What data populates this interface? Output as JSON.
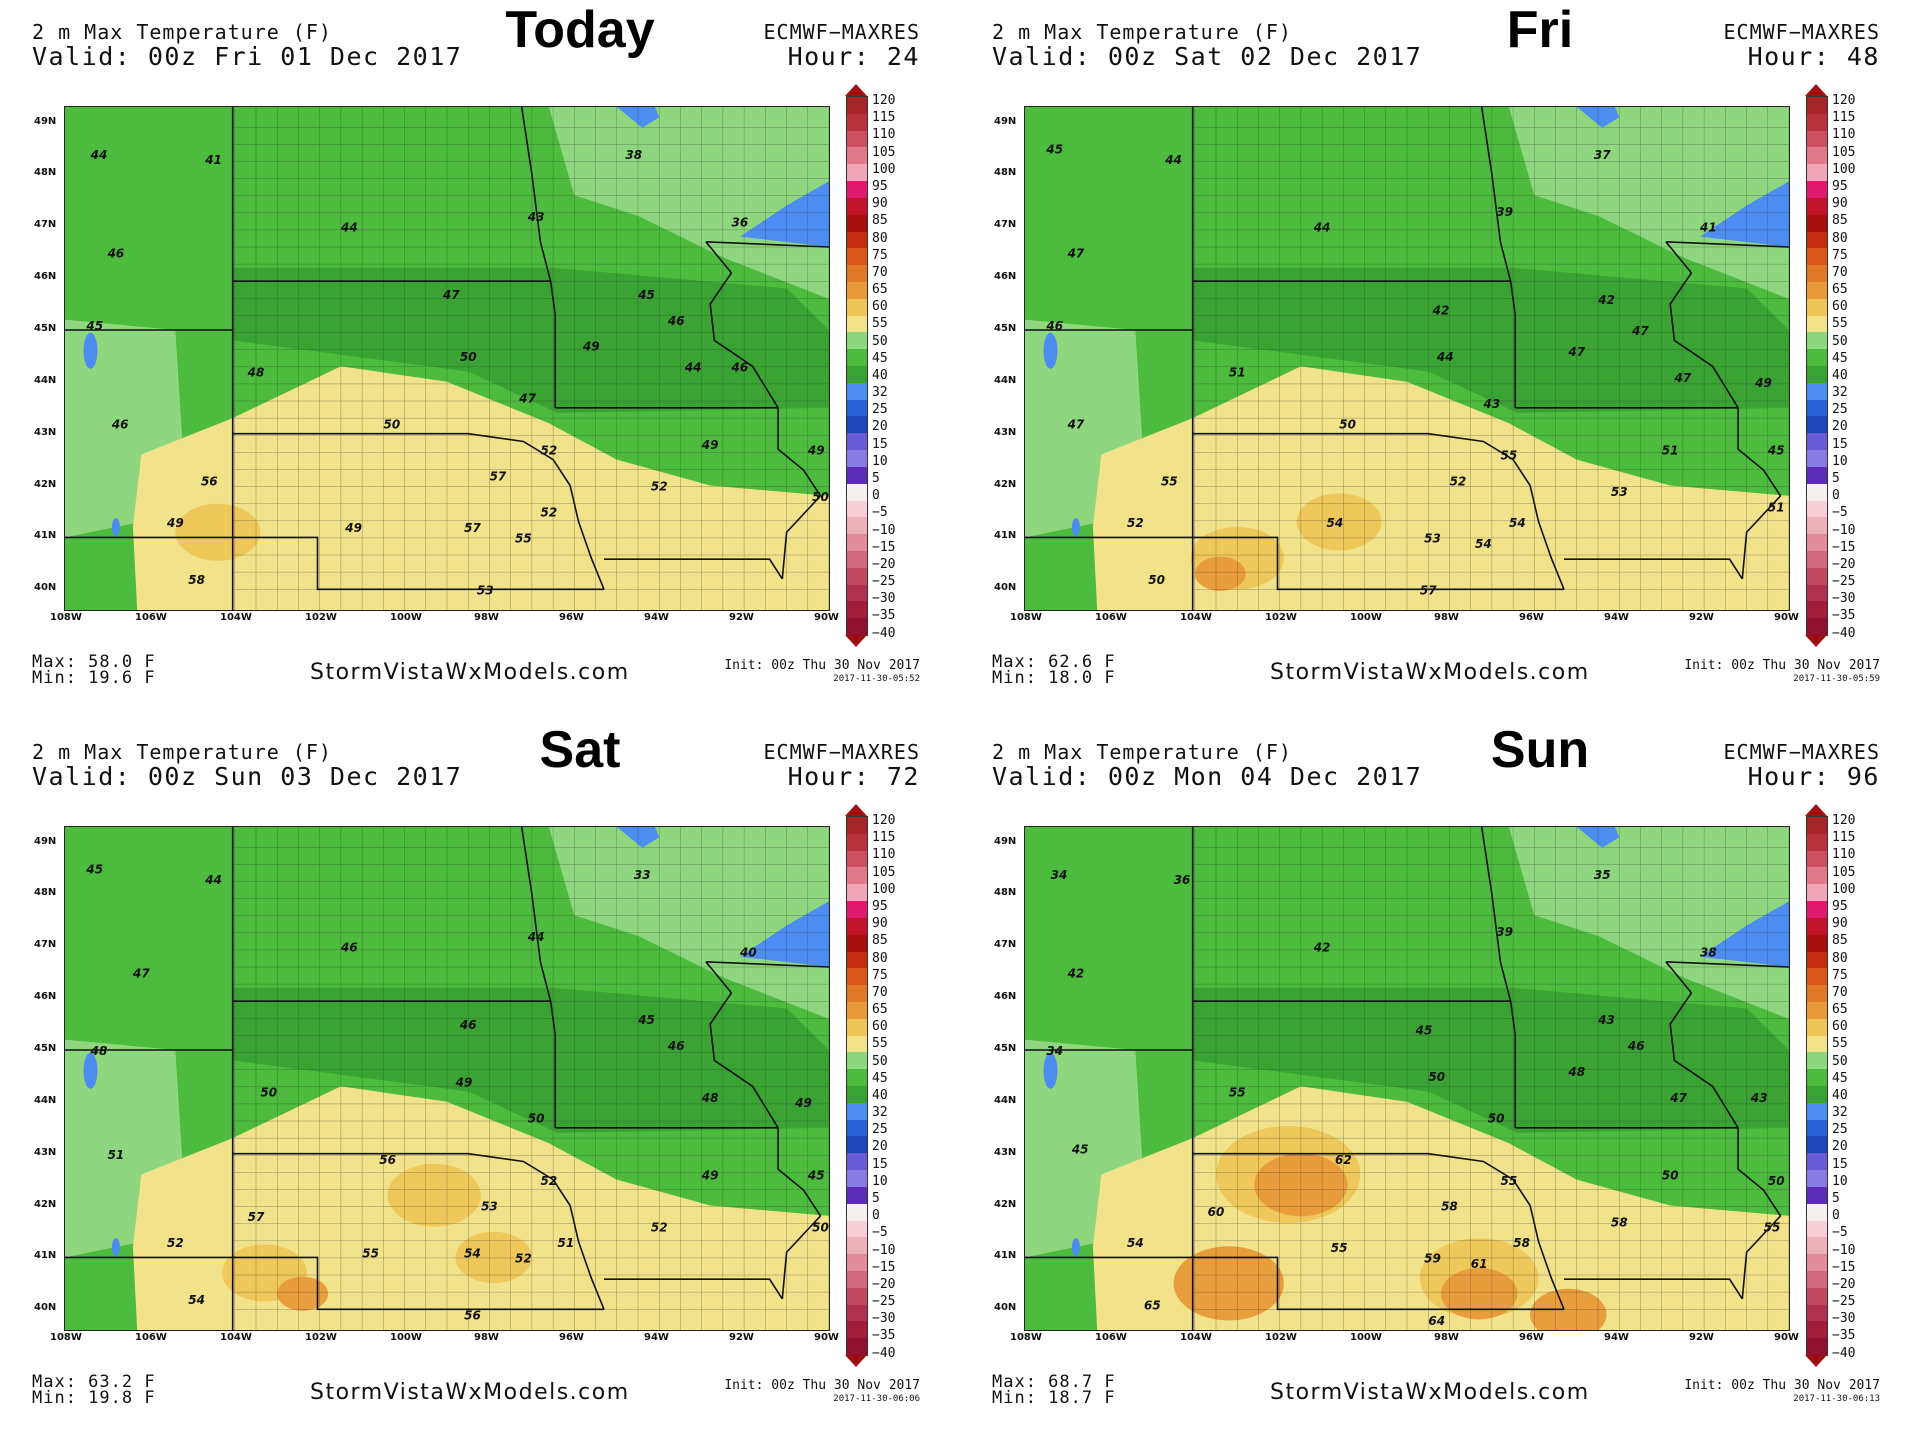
{
  "colors": {
    "dark_green": "#3aa334",
    "mid_green": "#4cbb3e",
    "light_green": "#8fd77e",
    "tan": "#f2e28a",
    "gold": "#eec65a",
    "orange": "#e89a3a",
    "lake_blue": "#4d8cf0",
    "county_line": "#333333"
  },
  "legend": {
    "labels": [
      "120",
      "115",
      "110",
      "105",
      "100",
      "95",
      "90",
      "85",
      "80",
      "75",
      "70",
      "65",
      "60",
      "55",
      "50",
      "45",
      "40",
      "32",
      "25",
      "20",
      "15",
      "10",
      "5",
      "0",
      "−5",
      "−10",
      "−15",
      "−20",
      "−25",
      "−30",
      "−35",
      "−40"
    ],
    "colors": [
      "#a52428",
      "#b8333c",
      "#cc5060",
      "#e07a8a",
      "#f0a6b8",
      "#e01a6e",
      "#c0142a",
      "#a81010",
      "#c42c10",
      "#d8561c",
      "#e07a28",
      "#e89a3a",
      "#eec65a",
      "#f2e28a",
      "#8fd77e",
      "#4cbb3e",
      "#3aa334",
      "#4d8cf0",
      "#2a63d6",
      "#1e46b8",
      "#6a5cd6",
      "#8a7ae4",
      "#5a2cb8",
      "#f4f0f0",
      "#f6d0d6",
      "#eeb0ba",
      "#e08c9c",
      "#d06a80",
      "#c04a64",
      "#b03050",
      "#a01e3c",
      "#901030"
    ]
  },
  "axes": {
    "lat_labels": [
      "49N",
      "48N",
      "47N",
      "46N",
      "45N",
      "44N",
      "43N",
      "42N",
      "41N",
      "40N"
    ],
    "lon_labels": [
      "108W",
      "106W",
      "104W",
      "102W",
      "100W",
      "98W",
      "96W",
      "94W",
      "92W",
      "90W"
    ]
  },
  "panels": [
    {
      "title": "2 m Max Temperature (F)",
      "valid": "Valid: 00z Fri 01 Dec 2017",
      "day": "Today",
      "model": "ECMWF−MAXRES",
      "hour": "Hour: 24",
      "max": "Max: 58.0 F",
      "min": "Min: 19.6 F",
      "site": "StormVistaWxModels.com",
      "init": "Init: 00z Thu 30 Nov 2017",
      "stamp": "2017-11-30-05:52",
      "values": [
        {
          "t": "44",
          "lon": -107.2,
          "lat": 48.3
        },
        {
          "t": "41",
          "lon": -104.5,
          "lat": 48.2
        },
        {
          "t": "46",
          "lon": -106.8,
          "lat": 46.4
        },
        {
          "t": "45",
          "lon": -107.3,
          "lat": 45.0
        },
        {
          "t": "46",
          "lon": -106.7,
          "lat": 43.1
        },
        {
          "t": "48",
          "lon": -103.5,
          "lat": 44.1
        },
        {
          "t": "50",
          "lon": -100.3,
          "lat": 43.1
        },
        {
          "t": "56",
          "lon": -104.6,
          "lat": 42.0
        },
        {
          "t": "49",
          "lon": -105.4,
          "lat": 41.2
        },
        {
          "t": "49",
          "lon": -101.2,
          "lat": 41.1
        },
        {
          "t": "44",
          "lon": -101.3,
          "lat": 46.9
        },
        {
          "t": "47",
          "lon": -98.9,
          "lat": 45.6
        },
        {
          "t": "50",
          "lon": -98.5,
          "lat": 44.4
        },
        {
          "t": "43",
          "lon": -96.9,
          "lat": 47.1
        },
        {
          "t": "47",
          "lon": -97.1,
          "lat": 43.6
        },
        {
          "t": "49",
          "lon": -95.6,
          "lat": 44.6
        },
        {
          "t": "45",
          "lon": -94.3,
          "lat": 45.6
        },
        {
          "t": "46",
          "lon": -93.6,
          "lat": 45.1
        },
        {
          "t": "44",
          "lon": -93.2,
          "lat": 44.2
        },
        {
          "t": "46",
          "lon": -92.1,
          "lat": 44.2
        },
        {
          "t": "49",
          "lon": -92.8,
          "lat": 42.7
        },
        {
          "t": "49",
          "lon": -90.3,
          "lat": 42.6
        },
        {
          "t": "50",
          "lon": -90.2,
          "lat": 41.7
        },
        {
          "t": "52",
          "lon": -94.0,
          "lat": 41.9
        },
        {
          "t": "52",
          "lon": -96.6,
          "lat": 42.6
        },
        {
          "t": "57",
          "lon": -97.8,
          "lat": 42.1
        },
        {
          "t": "57",
          "lon": -98.4,
          "lat": 41.1
        },
        {
          "t": "55",
          "lon": -97.2,
          "lat": 40.9
        },
        {
          "t": "52",
          "lon": -96.6,
          "lat": 41.4
        },
        {
          "t": "53",
          "lon": -98.1,
          "lat": 39.9
        },
        {
          "t": "58",
          "lon": -104.9,
          "lat": 40.1
        },
        {
          "t": "38",
          "lon": -94.6,
          "lat": 48.3
        },
        {
          "t": "36",
          "lon": -92.1,
          "lat": 47.0
        }
      ],
      "warm": [
        {
          "lon": -104.4,
          "lat": 41.1,
          "r": 1.0,
          "c": "gold"
        }
      ]
    },
    {
      "title": "2 m Max Temperature (F)",
      "valid": "Valid: 00z Sat 02 Dec 2017",
      "day": "Fri",
      "model": "ECMWF−MAXRES",
      "hour": "Hour: 48",
      "max": "Max: 62.6 F",
      "min": "Min: 18.0 F",
      "site": "StormVistaWxModels.com",
      "init": "Init: 00z Thu 30 Nov 2017",
      "stamp": "2017-11-30-05:59",
      "values": [
        {
          "t": "45",
          "lon": -107.3,
          "lat": 48.4
        },
        {
          "t": "44",
          "lon": -104.5,
          "lat": 48.2
        },
        {
          "t": "47",
          "lon": -106.8,
          "lat": 46.4
        },
        {
          "t": "46",
          "lon": -107.3,
          "lat": 45.0
        },
        {
          "t": "47",
          "lon": -106.8,
          "lat": 43.1
        },
        {
          "t": "51",
          "lon": -103.0,
          "lat": 44.1
        },
        {
          "t": "50",
          "lon": -100.4,
          "lat": 43.1
        },
        {
          "t": "55",
          "lon": -104.6,
          "lat": 42.0
        },
        {
          "t": "52",
          "lon": -105.4,
          "lat": 41.2
        },
        {
          "t": "54",
          "lon": -100.7,
          "lat": 41.2
        },
        {
          "t": "44",
          "lon": -101.0,
          "lat": 46.9
        },
        {
          "t": "42",
          "lon": -98.2,
          "lat": 45.3
        },
        {
          "t": "44",
          "lon": -98.1,
          "lat": 44.4
        },
        {
          "t": "39",
          "lon": -96.7,
          "lat": 47.2
        },
        {
          "t": "43",
          "lon": -97.0,
          "lat": 43.5
        },
        {
          "t": "47",
          "lon": -95.0,
          "lat": 44.5
        },
        {
          "t": "42",
          "lon": -94.3,
          "lat": 45.5
        },
        {
          "t": "47",
          "lon": -93.5,
          "lat": 44.9
        },
        {
          "t": "47",
          "lon": -92.5,
          "lat": 44.0
        },
        {
          "t": "49",
          "lon": -90.6,
          "lat": 43.9
        },
        {
          "t": "51",
          "lon": -92.8,
          "lat": 42.6
        },
        {
          "t": "45",
          "lon": -90.3,
          "lat": 42.6
        },
        {
          "t": "51",
          "lon": -90.3,
          "lat": 41.5
        },
        {
          "t": "53",
          "lon": -94.0,
          "lat": 41.8
        },
        {
          "t": "55",
          "lon": -96.6,
          "lat": 42.5
        },
        {
          "t": "52",
          "lon": -97.8,
          "lat": 42.0
        },
        {
          "t": "53",
          "lon": -98.4,
          "lat": 40.9
        },
        {
          "t": "54",
          "lon": -97.2,
          "lat": 40.8
        },
        {
          "t": "54",
          "lon": -96.4,
          "lat": 41.2
        },
        {
          "t": "57",
          "lon": -98.5,
          "lat": 39.9
        },
        {
          "t": "50",
          "lon": -104.9,
          "lat": 40.1
        },
        {
          "t": "37",
          "lon": -94.4,
          "lat": 48.3
        },
        {
          "t": "41",
          "lon": -91.9,
          "lat": 46.9
        }
      ],
      "warm": [
        {
          "lon": -103.0,
          "lat": 40.6,
          "r": 1.1,
          "c": "gold"
        },
        {
          "lon": -103.4,
          "lat": 40.3,
          "r": 0.6,
          "c": "orange"
        },
        {
          "lon": -100.6,
          "lat": 41.3,
          "r": 1.0,
          "c": "gold"
        }
      ]
    },
    {
      "title": "2 m Max Temperature (F)",
      "valid": "Valid: 00z Sun 03 Dec 2017",
      "day": "Sat",
      "model": "ECMWF−MAXRES",
      "hour": "Hour: 72",
      "max": "Max: 63.2 F",
      "min": "Min: 19.8 F",
      "site": "StormVistaWxModels.com",
      "init": "Init: 00z Thu 30 Nov 2017",
      "stamp": "2017-11-30-06:06",
      "values": [
        {
          "t": "45",
          "lon": -107.3,
          "lat": 48.4
        },
        {
          "t": "44",
          "lon": -104.5,
          "lat": 48.2
        },
        {
          "t": "47",
          "lon": -106.2,
          "lat": 46.4
        },
        {
          "t": "48",
          "lon": -107.2,
          "lat": 44.9
        },
        {
          "t": "51",
          "lon": -106.8,
          "lat": 42.9
        },
        {
          "t": "50",
          "lon": -103.2,
          "lat": 44.1
        },
        {
          "t": "56",
          "lon": -100.4,
          "lat": 42.8
        },
        {
          "t": "57",
          "lon": -103.5,
          "lat": 41.7
        },
        {
          "t": "52",
          "lon": -105.4,
          "lat": 41.2
        },
        {
          "t": "55",
          "lon": -100.8,
          "lat": 41.0
        },
        {
          "t": "46",
          "lon": -101.3,
          "lat": 46.9
        },
        {
          "t": "46",
          "lon": -98.5,
          "lat": 45.4
        },
        {
          "t": "49",
          "lon": -98.6,
          "lat": 44.3
        },
        {
          "t": "44",
          "lon": -96.9,
          "lat": 47.1
        },
        {
          "t": "50",
          "lon": -96.9,
          "lat": 43.6
        },
        {
          "t": "46",
          "lon": -93.6,
          "lat": 45.0
        },
        {
          "t": "45",
          "lon": -94.3,
          "lat": 45.5
        },
        {
          "t": "48",
          "lon": -92.8,
          "lat": 44.0
        },
        {
          "t": "49",
          "lon": -90.6,
          "lat": 43.9
        },
        {
          "t": "49",
          "lon": -92.8,
          "lat": 42.5
        },
        {
          "t": "45",
          "lon": -90.3,
          "lat": 42.5
        },
        {
          "t": "50",
          "lon": -90.2,
          "lat": 41.5
        },
        {
          "t": "52",
          "lon": -94.0,
          "lat": 41.5
        },
        {
          "t": "52",
          "lon": -96.6,
          "lat": 42.4
        },
        {
          "t": "53",
          "lon": -98.0,
          "lat": 41.9
        },
        {
          "t": "54",
          "lon": -98.4,
          "lat": 41.0
        },
        {
          "t": "52",
          "lon": -97.2,
          "lat": 40.9
        },
        {
          "t": "51",
          "lon": -96.2,
          "lat": 41.2
        },
        {
          "t": "56",
          "lon": -98.4,
          "lat": 39.8
        },
        {
          "t": "54",
          "lon": -104.9,
          "lat": 40.1
        },
        {
          "t": "33",
          "lon": -94.4,
          "lat": 48.3
        },
        {
          "t": "40",
          "lon": -91.9,
          "lat": 46.8
        }
      ],
      "warm": [
        {
          "lon": -103.3,
          "lat": 40.7,
          "r": 1.0,
          "c": "gold"
        },
        {
          "lon": -102.4,
          "lat": 40.3,
          "r": 0.6,
          "c": "orange"
        },
        {
          "lon": -99.3,
          "lat": 42.2,
          "r": 1.1,
          "c": "gold"
        },
        {
          "lon": -97.9,
          "lat": 41.0,
          "r": 0.9,
          "c": "gold"
        }
      ]
    },
    {
      "title": "2 m Max Temperature (F)",
      "valid": "Valid: 00z Mon 04 Dec 2017",
      "day": "Sun",
      "model": "ECMWF−MAXRES",
      "hour": "Hour: 96",
      "max": "Max: 68.7 F",
      "min": "Min: 18.7 F",
      "site": "StormVistaWxModels.com",
      "init": "Init: 00z Thu 30 Nov 2017",
      "stamp": "2017-11-30-06:13",
      "values": [
        {
          "t": "34",
          "lon": -107.2,
          "lat": 48.3
        },
        {
          "t": "36",
          "lon": -104.3,
          "lat": 48.2
        },
        {
          "t": "42",
          "lon": -106.8,
          "lat": 46.4
        },
        {
          "t": "34",
          "lon": -107.3,
          "lat": 44.9
        },
        {
          "t": "45",
          "lon": -106.7,
          "lat": 43.0
        },
        {
          "t": "55",
          "lon": -103.0,
          "lat": 44.1
        },
        {
          "t": "62",
          "lon": -100.5,
          "lat": 42.8
        },
        {
          "t": "60",
          "lon": -103.5,
          "lat": 41.8
        },
        {
          "t": "54",
          "lon": -105.4,
          "lat": 41.2
        },
        {
          "t": "55",
          "lon": -100.6,
          "lat": 41.1
        },
        {
          "t": "42",
          "lon": -101.0,
          "lat": 46.9
        },
        {
          "t": "45",
          "lon": -98.6,
          "lat": 45.3
        },
        {
          "t": "50",
          "lon": -98.3,
          "lat": 44.4
        },
        {
          "t": "39",
          "lon": -96.7,
          "lat": 47.2
        },
        {
          "t": "50",
          "lon": -96.9,
          "lat": 43.6
        },
        {
          "t": "48",
          "lon": -95.0,
          "lat": 44.5
        },
        {
          "t": "43",
          "lon": -94.3,
          "lat": 45.5
        },
        {
          "t": "46",
          "lon": -93.6,
          "lat": 45.0
        },
        {
          "t": "47",
          "lon": -92.6,
          "lat": 44.0
        },
        {
          "t": "43",
          "lon": -90.7,
          "lat": 44.0
        },
        {
          "t": "50",
          "lon": -92.8,
          "lat": 42.5
        },
        {
          "t": "50",
          "lon": -90.3,
          "lat": 42.4
        },
        {
          "t": "55",
          "lon": -90.4,
          "lat": 41.5
        },
        {
          "t": "58",
          "lon": -94.0,
          "lat": 41.6
        },
        {
          "t": "55",
          "lon": -96.6,
          "lat": 42.4
        },
        {
          "t": "58",
          "lon": -98.0,
          "lat": 41.9
        },
        {
          "t": "59",
          "lon": -98.4,
          "lat": 40.9
        },
        {
          "t": "61",
          "lon": -97.3,
          "lat": 40.8
        },
        {
          "t": "58",
          "lon": -96.3,
          "lat": 41.2
        },
        {
          "t": "64",
          "lon": -98.3,
          "lat": 39.7
        },
        {
          "t": "65",
          "lon": -105.0,
          "lat": 40.0
        },
        {
          "t": "35",
          "lon": -94.4,
          "lat": 48.3
        },
        {
          "t": "38",
          "lon": -91.9,
          "lat": 46.8
        }
      ],
      "warm": [
        {
          "lon": -101.8,
          "lat": 42.6,
          "r": 1.7,
          "c": "gold"
        },
        {
          "lon": -101.5,
          "lat": 42.4,
          "r": 1.1,
          "c": "orange"
        },
        {
          "lon": -103.2,
          "lat": 40.5,
          "r": 1.3,
          "c": "orange"
        },
        {
          "lon": -97.3,
          "lat": 40.6,
          "r": 1.4,
          "c": "gold"
        },
        {
          "lon": -97.3,
          "lat": 40.3,
          "r": 0.9,
          "c": "orange"
        },
        {
          "lon": -95.2,
          "lat": 39.9,
          "r": 0.9,
          "c": "orange"
        }
      ]
    }
  ]
}
